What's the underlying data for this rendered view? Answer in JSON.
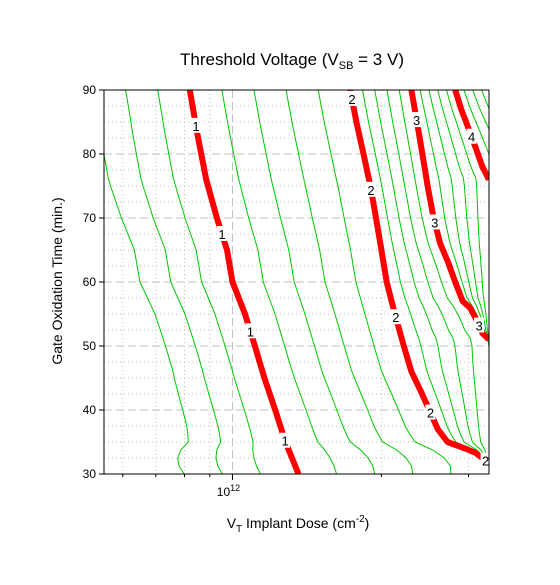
{
  "chart_data": {
    "type": "line",
    "title": {
      "main": "Threshold Voltage (V",
      "sub": "SB",
      "tail": " = 3 V)"
    },
    "xlabel": {
      "main": "V",
      "sub": "T",
      "mid": " Implant Dose (cm",
      "sup": "-2",
      "tail": ")"
    },
    "ylabel": "Gate Oxidation Time (min.)",
    "x_scale": "log",
    "xlim": [
      550000000000.0,
      3300000000000.0
    ],
    "ylim": [
      30,
      90
    ],
    "x_ticks": [
      {
        "value": 1000000000000.0,
        "base": "10",
        "exp": "12"
      }
    ],
    "y_ticks": [
      30,
      40,
      50,
      60,
      70,
      80,
      90
    ],
    "grid": true,
    "colors": {
      "major_contour": "#ff0000",
      "minor_contour": "#00c800",
      "grid": "#c0c0c0"
    },
    "major_contours": [
      {
        "level": "1",
        "label_y": [
          84.4,
          67.5,
          52.3,
          35.2
        ],
        "points": [
          [
            820000000000.0,
            90
          ],
          [
            850000000000.0,
            83
          ],
          [
            885000000000.0,
            76
          ],
          [
            930000000000.0,
            70
          ],
          [
            975000000000.0,
            65
          ],
          [
            1000000000000.0,
            60
          ],
          [
            1060000000000.0,
            55
          ],
          [
            1110000000000.0,
            50
          ],
          [
            1160000000000.0,
            45
          ],
          [
            1220000000000.0,
            40
          ],
          [
            1280000000000.0,
            35
          ],
          [
            1360000000000.0,
            30
          ]
        ]
      },
      {
        "level": "2",
        "label_y": [
          88.6,
          74.4,
          54.5,
          39.6,
          32.1
        ],
        "points": [
          [
            1730000000000.0,
            90
          ],
          [
            1780000000000.0,
            85
          ],
          [
            1840000000000.0,
            80
          ],
          [
            1900000000000.0,
            75
          ],
          [
            1950000000000.0,
            70
          ],
          [
            2000000000000.0,
            65
          ],
          [
            2050000000000.0,
            60
          ],
          [
            2130000000000.0,
            55
          ],
          [
            2220000000000.0,
            50
          ],
          [
            2300000000000.0,
            46
          ],
          [
            2400000000000.0,
            43
          ],
          [
            2500000000000.0,
            40
          ],
          [
            2600000000000.0,
            37
          ],
          [
            2720000000000.0,
            35
          ],
          [
            2950000000000.0,
            34
          ],
          [
            3100000000000.0,
            33.3
          ],
          [
            3200000000000.0,
            32.5
          ],
          [
            3260000000000.0,
            32
          ],
          [
            3300000000000.0,
            32
          ]
        ]
      },
      {
        "level": "3",
        "label_y": [
          85.3,
          69.3,
          53.2
        ],
        "points": [
          [
            2300000000000.0,
            90
          ],
          [
            2360000000000.0,
            85
          ],
          [
            2420000000000.0,
            80
          ],
          [
            2480000000000.0,
            75
          ],
          [
            2550000000000.0,
            70
          ],
          [
            2630000000000.0,
            66
          ],
          [
            2730000000000.0,
            63
          ],
          [
            2820000000000.0,
            60
          ],
          [
            2920000000000.0,
            57
          ],
          [
            3020000000000.0,
            56
          ],
          [
            3120000000000.0,
            54
          ],
          [
            3200000000000.0,
            52
          ],
          [
            3300000000000.0,
            51
          ]
        ]
      },
      {
        "level": "4",
        "label_y": [
          82.7
        ],
        "points": [
          [
            2820000000000.0,
            90
          ],
          [
            2900000000000.0,
            87
          ],
          [
            3000000000000.0,
            84
          ],
          [
            3100000000000.0,
            81
          ],
          [
            3200000000000.0,
            78
          ],
          [
            3300000000000.0,
            76
          ]
        ]
      }
    ]
  }
}
